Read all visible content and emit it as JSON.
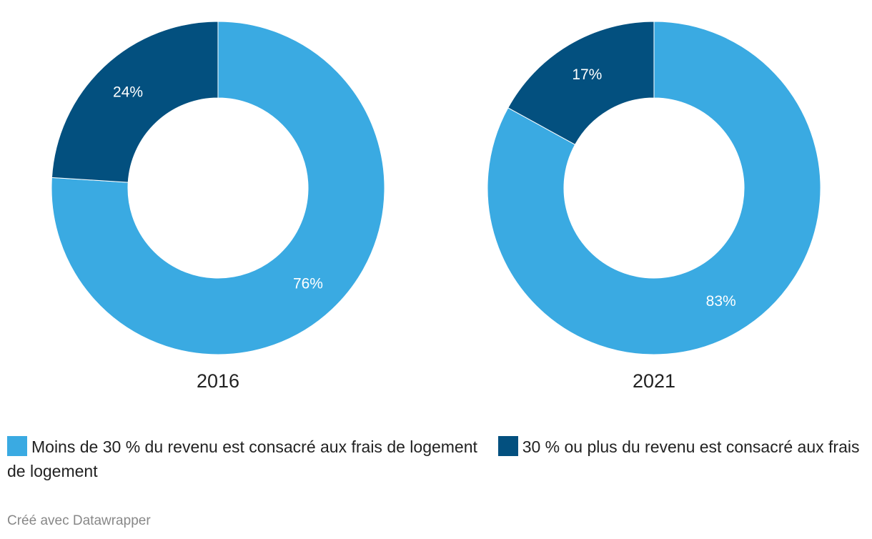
{
  "chart_data": [
    {
      "type": "pie",
      "title": "2016",
      "categories": [
        "Moins de 30 % du revenu est consacré aux frais de logement",
        "30 % ou plus du revenu est consacré aux frais de logement"
      ],
      "values": [
        76,
        24
      ],
      "labels": [
        "76%",
        "24%"
      ],
      "colors": [
        "#3aaae2",
        "#03507f"
      ]
    },
    {
      "type": "pie",
      "title": "2021",
      "categories": [
        "Moins de 30 % du revenu est consacré aux frais de logement",
        "30 % ou plus du revenu est consacré aux frais de logement"
      ],
      "values": [
        83,
        17
      ],
      "labels": [
        "83%",
        "17%"
      ],
      "colors": [
        "#3aaae2",
        "#03507f"
      ]
    }
  ],
  "legend": {
    "items": [
      {
        "label": "Moins de 30 % du revenu est consacré aux frais de logement",
        "color": "#3aaae2"
      },
      {
        "label": "30 % ou plus du revenu est consacré aux frais de logement",
        "color": "#03507f"
      }
    ],
    "placement": "bottom"
  },
  "footer": {
    "credit": "Créé avec Datawrapper"
  }
}
